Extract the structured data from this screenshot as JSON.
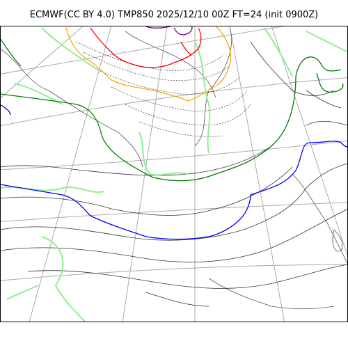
{
  "title": "ECMWF(CC BY 4.0) TMP850 2025/12/10 00Z FT=24 (init 0900Z)",
  "colors": {
    "coastline": "#555555",
    "graticule": "#aaaaaa",
    "isotherm_thin": "#333333",
    "isotherm_light_green": "#90ee90",
    "isotherm_green": "#008000",
    "isotherm_blue": "#0000ff",
    "isotherm_orange": "#ffa500",
    "isotherm_red": "#ff0000",
    "isotherm_purple": "#800080"
  }
}
